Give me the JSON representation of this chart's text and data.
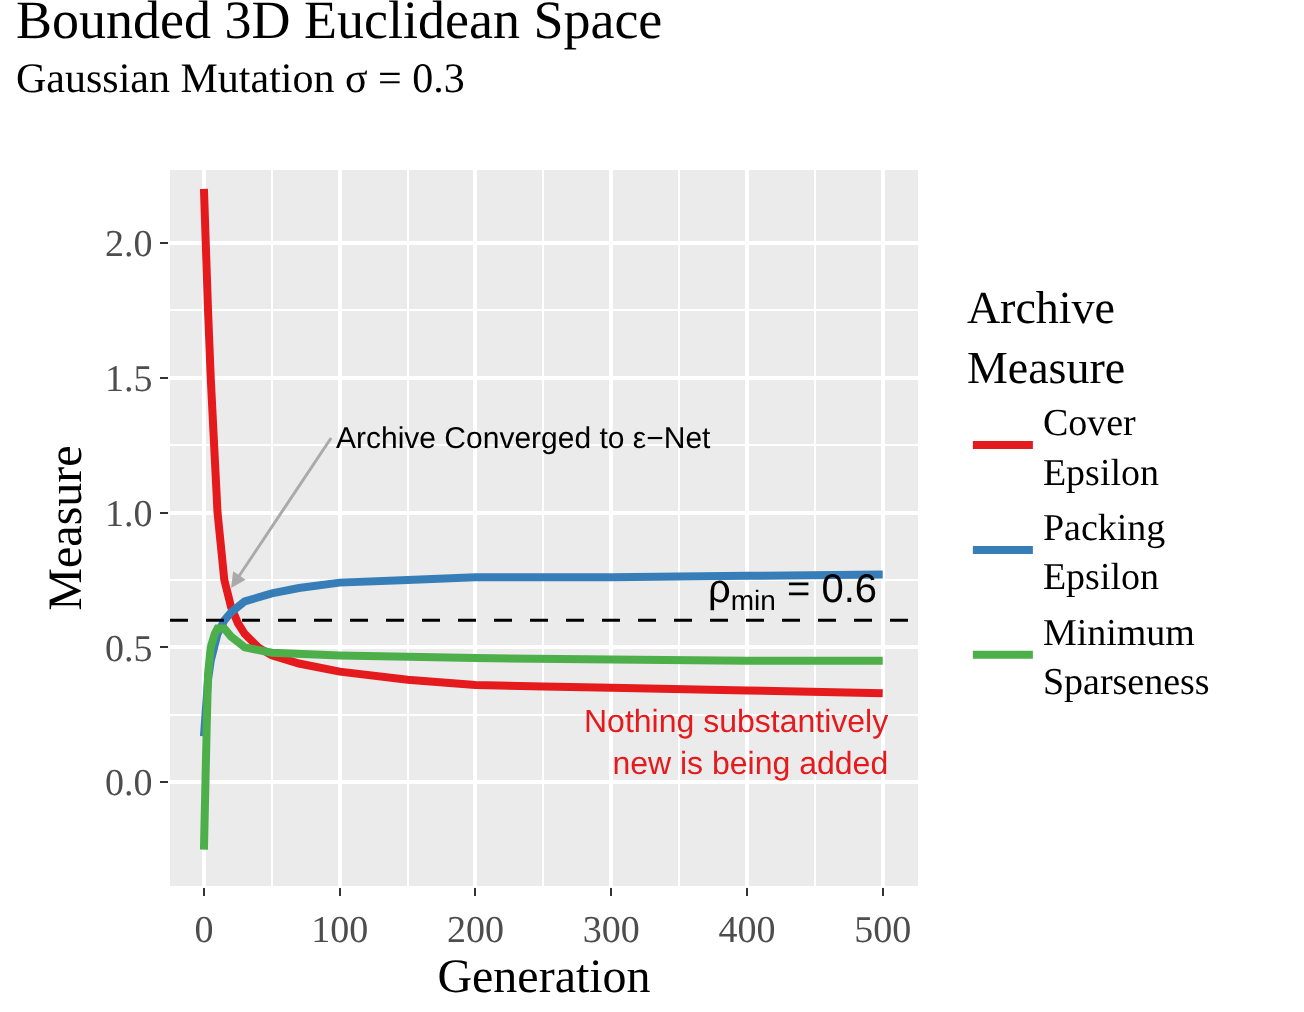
{
  "chart_data": {
    "type": "line",
    "title": "Bounded 3D Euclidean Space",
    "subtitle": "Gaussian Mutation σ = 0.3",
    "xlabel": "Generation",
    "ylabel": "Measure",
    "legend_title": "Archive\nMeasure",
    "xlim": [
      -25,
      526
    ],
    "ylim": [
      -0.385,
      2.27
    ],
    "xticks": [
      0,
      100,
      200,
      300,
      400,
      500
    ],
    "yticks": [
      {
        "value": 0,
        "label": "0.0"
      },
      0.5,
      {
        "value": 1,
        "label": "1.0"
      },
      1.5,
      {
        "value": 2,
        "label": "2.0"
      }
    ],
    "grid": true,
    "legend": "right",
    "line_style": "solid",
    "marker": "none",
    "series": [
      {
        "name": "Cover\nEpsilon",
        "color": "#e41a1c",
        "x": [
          0,
          3,
          5,
          8,
          10,
          15,
          20,
          25,
          30,
          40,
          50,
          70,
          100,
          150,
          200,
          250,
          300,
          400,
          500
        ],
        "values": [
          2.2,
          1.75,
          1.5,
          1.2,
          1.0,
          0.75,
          0.65,
          0.59,
          0.55,
          0.5,
          0.47,
          0.44,
          0.41,
          0.38,
          0.36,
          0.355,
          0.35,
          0.34,
          0.33
        ]
      },
      {
        "name": "Packing\nEpsilon",
        "color": "#377eb8",
        "x": [
          0,
          3,
          5,
          10,
          15,
          20,
          30,
          50,
          70,
          100,
          150,
          200,
          300,
          400,
          500
        ],
        "values": [
          0.17,
          0.38,
          0.45,
          0.55,
          0.6,
          0.63,
          0.67,
          0.7,
          0.72,
          0.74,
          0.75,
          0.76,
          0.76,
          0.765,
          0.77
        ]
      },
      {
        "name": "Minimum\nSparseness",
        "color": "#4daf4a",
        "x": [
          0,
          2,
          3,
          5,
          8,
          10,
          15,
          20,
          25,
          30,
          50,
          100,
          200,
          300,
          400,
          500
        ],
        "values": [
          -0.25,
          0.2,
          0.4,
          0.5,
          0.55,
          0.57,
          0.57,
          0.54,
          0.52,
          0.5,
          0.48,
          0.47,
          0.46,
          0.455,
          0.45,
          0.45
        ]
      }
    ],
    "ref_lines": [
      {
        "axis": "y",
        "value": 0.6,
        "label": "ρ$_{min}$ = 0.6",
        "color": "#000000",
        "line_style": "dashed"
      }
    ],
    "annotations": [
      {
        "text": "Archive Converged to ε−Net",
        "x": 20,
        "y": 0.72
      },
      "Nothing substantively\nnew is being added"
    ]
  }
}
